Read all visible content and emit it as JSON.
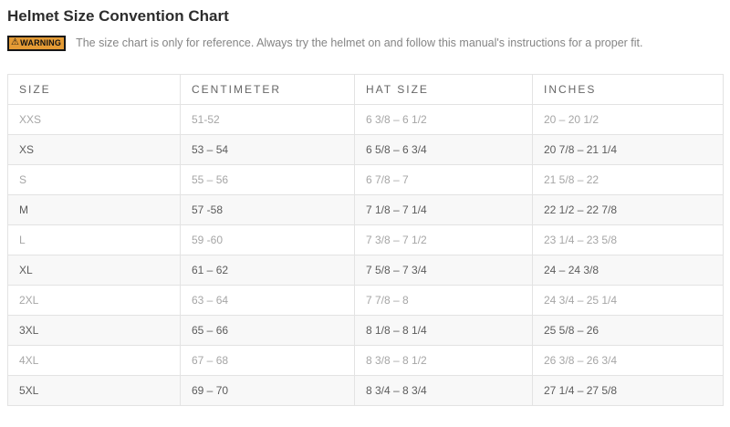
{
  "page": {
    "title": "Helmet Size Convention Chart"
  },
  "warning": {
    "icon": "⚠",
    "badge_label": "WARNING",
    "text": "The size chart is only for reference. Always try the helmet on and follow this manual's instructions for a proper fit."
  },
  "table": {
    "headers": [
      "SIZE",
      "CENTIMETER",
      "HAT SIZE",
      "INCHES"
    ],
    "rows": [
      [
        "XXS",
        "51-52",
        "6 3/8 – 6 1/2",
        "20 – 20 1/2"
      ],
      [
        "XS",
        "53 – 54",
        "6 5/8 – 6 3/4",
        "20 7/8 – 21 1/4"
      ],
      [
        "S",
        "55 – 56",
        "6 7/8 – 7",
        "21 5/8 – 22"
      ],
      [
        "M",
        "57 -58",
        "7 1/8 – 7 1/4",
        "22 1/2 – 22 7/8"
      ],
      [
        "L",
        "59 -60",
        "7 3/8 – 7 1/2",
        "23 1/4 – 23 5/8"
      ],
      [
        "XL",
        "61 – 62",
        "7 5/8 – 7 3/4",
        "24 – 24 3/8"
      ],
      [
        "2XL",
        "63 – 64",
        "7 7/8 – 8",
        "24 3/4 – 25 1/4"
      ],
      [
        "3XL",
        "65 – 66",
        "8 1/8 – 8 1/4",
        "25 5/8 – 26"
      ],
      [
        "4XL",
        "67 – 68",
        "8 3/8 – 8 1/2",
        "26 3/8 – 26 3/4"
      ],
      [
        "5XL",
        "69 – 70",
        "8 3/4 – 8 3/4",
        "27 1/4 – 27 5/8"
      ]
    ]
  },
  "colors": {
    "warning_badge_bg": "#e49b35",
    "warning_badge_border": "#161616",
    "table_border": "#e3e3e3",
    "row_alt_bg": "#f8f8f8",
    "row_text_light": "#a6a6a6",
    "row_text_dark": "#5c5c5c",
    "header_text": "#666666",
    "title_text": "#2d2d2d",
    "warning_text": "#858585"
  }
}
